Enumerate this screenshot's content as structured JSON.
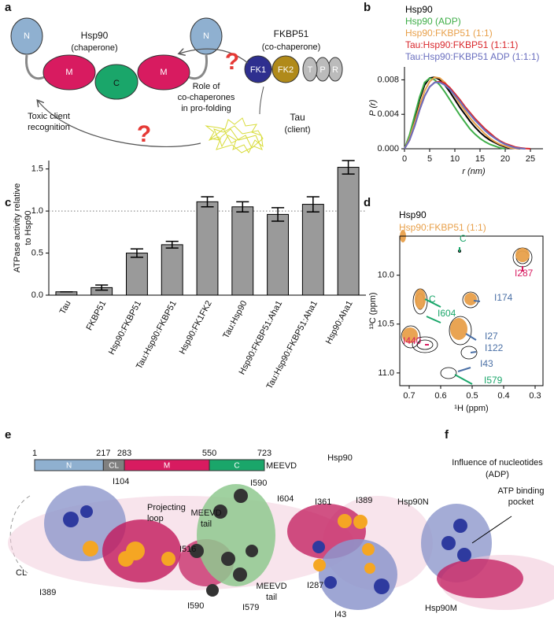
{
  "panel_labels": [
    "a",
    "b",
    "c",
    "d",
    "e",
    "f"
  ],
  "panel_a": {
    "hsp90": [
      "Hsp90",
      "(chaperone)"
    ],
    "domains": [
      "N",
      "M",
      "C",
      "M",
      "N"
    ],
    "fkbp51": [
      "FKBP51",
      "(co-chaperone)"
    ],
    "fkbp51_domains": [
      "FK1",
      "FK2",
      "T",
      "P",
      "R"
    ],
    "cochaperone_role": [
      "Role of",
      "co-chaperones",
      "in pro-folding"
    ],
    "tau": [
      "Tau",
      "(client)"
    ],
    "toxic": [
      "Toxic client",
      "recognition"
    ],
    "question": "?"
  },
  "chart_data": [
    {
      "type": "line",
      "xlabel": "r (nm)",
      "ylabel": "P (r)",
      "x": [
        0,
        1,
        2,
        3,
        4,
        5,
        6,
        7,
        8,
        9,
        10,
        11,
        12,
        13,
        14,
        15,
        16,
        17,
        18,
        19,
        20,
        21,
        22,
        23,
        24,
        25
      ],
      "xlim": [
        0,
        27.5
      ],
      "xticks": [
        0,
        5,
        10,
        15,
        20,
        25
      ],
      "ylim": [
        0,
        0.0095
      ],
      "yticks": [
        {
          "value": 0,
          "label": "0.000"
        },
        {
          "value": 0.004,
          "label": "0.004"
        },
        {
          "value": 0.008,
          "label": "0.008"
        }
      ],
      "series": [
        {
          "name": "Hsp90",
          "color": "#000000",
          "values": [
            0,
            0.0015,
            0.0035,
            0.0057,
            0.0074,
            0.0082,
            0.0083,
            0.008,
            0.0074,
            0.0066,
            0.0057,
            0.0048,
            0.004,
            0.0032,
            0.0025,
            0.0019,
            0.0014,
            0.001,
            0.0007,
            0.0004,
            0.0002,
            0.0001,
            5e-05,
            0,
            null,
            null
          ]
        },
        {
          "name": "Hsp90 (ADP)",
          "color": "#3fae49",
          "values": [
            0,
            0.0016,
            0.0038,
            0.006,
            0.0077,
            0.0082,
            0.008,
            0.0074,
            0.0066,
            0.0057,
            0.0048,
            0.0039,
            0.0031,
            0.0023,
            0.0017,
            0.0012,
            0.0008,
            0.0005,
            0.0003,
            0.0001,
            0,
            null,
            null,
            null,
            null,
            null
          ]
        },
        {
          "name": "Hsp90:FKBP51 (1:1)",
          "color": "#e8a04a",
          "values": [
            0,
            0.0012,
            0.003,
            0.005,
            0.0067,
            0.0078,
            0.0083,
            0.0082,
            0.0077,
            0.007,
            0.0061,
            0.0052,
            0.0044,
            0.0036,
            0.0029,
            0.0023,
            0.0017,
            0.0012,
            0.0008,
            0.0005,
            0.0003,
            0.0001,
            5e-05,
            2e-05,
            0,
            null
          ]
        },
        {
          "name": "Tau:Hsp90:FKBP51 (1:1:1)",
          "color": "#d9262b",
          "values": [
            0,
            0.001,
            0.0026,
            0.0045,
            0.0061,
            0.0072,
            0.0077,
            0.0078,
            0.0076,
            0.0071,
            0.0064,
            0.0057,
            0.0049,
            0.0042,
            0.0035,
            0.0029,
            0.0023,
            0.0018,
            0.0013,
            0.0009,
            0.0006,
            0.0004,
            0.0002,
            0.0001,
            4e-05,
            0
          ]
        },
        {
          "name": "Tau:Hsp90:FKBP51 ADP (1:1:1)",
          "color": "#6a6fbf",
          "values": [
            0,
            0.001,
            0.0026,
            0.0045,
            0.0061,
            0.0072,
            0.0077,
            0.0077,
            0.0074,
            0.0069,
            0.0062,
            0.0055,
            0.0047,
            0.004,
            0.0033,
            0.0027,
            0.0021,
            0.0016,
            0.0012,
            0.0008,
            0.0005,
            0.0003,
            0.0001,
            5e-05,
            0,
            null
          ]
        }
      ]
    },
    {
      "type": "bar",
      "ylabel": [
        "ATPase activity relative",
        "to Hsp90"
      ],
      "categories": [
        "Tau",
        "FKBP51",
        "Hsp90:FKBP51",
        "Tau:Hsp90:FKBP51",
        "Hsp90:FK1FK2",
        "Tau:Hsp90",
        "Hsp90:FKBP51:Aha1",
        "Tau:Hsp90:FKBP51:Aha1",
        "Hsp90:Aha1"
      ],
      "values": [
        0.04,
        0.09,
        0.5,
        0.6,
        1.11,
        1.05,
        0.96,
        1.08,
        1.52
      ],
      "errors": [
        0,
        0.03,
        0.05,
        0.04,
        0.06,
        0.06,
        0.08,
        0.09,
        0.08
      ],
      "color": "#9a9a9a",
      "reference_line": 1,
      "ylim": [
        0,
        1.6
      ],
      "yticks": [
        {
          "value": 0,
          "label": "0.0"
        },
        0.5,
        {
          "value": 1,
          "label": "1.0"
        },
        1.5
      ]
    },
    {
      "type": "contour",
      "xlabel": "¹H (ppm)",
      "ylabel": "¹³C (ppm)",
      "xlim": [
        0.73,
        0.275
      ],
      "xticks": [
        0.7,
        0.6,
        0.5,
        0.4,
        0.3
      ],
      "ylim": [
        11.13,
        9.6
      ],
      "yticks": [
        {
          "value": 10,
          "label": "10.0"
        },
        10.5,
        {
          "value": 11,
          "label": "11.0"
        }
      ],
      "series": [
        {
          "name": "Hsp90",
          "color": "#000000"
        },
        {
          "name": "Hsp90:FKBP51 (1:1)",
          "color": "#e8a04a"
        }
      ],
      "annotations": [
        "C",
        "C",
        "I604",
        "I174",
        "I287",
        "I440",
        "I27",
        "I122",
        "I43",
        "I579"
      ]
    }
  ],
  "panel_e": {
    "domain_bar": {
      "positions": [
        1,
        217,
        283,
        550,
        723
      ],
      "domains": [
        "N",
        "CL",
        "M",
        "C"
      ],
      "tail": "MEEVD"
    },
    "title": "Hsp90",
    "labels": [
      "I104",
      "Projecting",
      "loop",
      "I590",
      "I604",
      "MEEVD",
      "tail",
      "I361",
      "I389",
      "I516",
      "CL",
      "I389",
      "MEEVD",
      "tail",
      "I287",
      "I590",
      "I579",
      "I43"
    ]
  },
  "panel_f": {
    "title": [
      "Influence of nucleotides",
      "(ADP)"
    ],
    "labels": [
      "Hsp90N",
      "ATP binding",
      "pocket",
      "Hsp90M"
    ]
  }
}
